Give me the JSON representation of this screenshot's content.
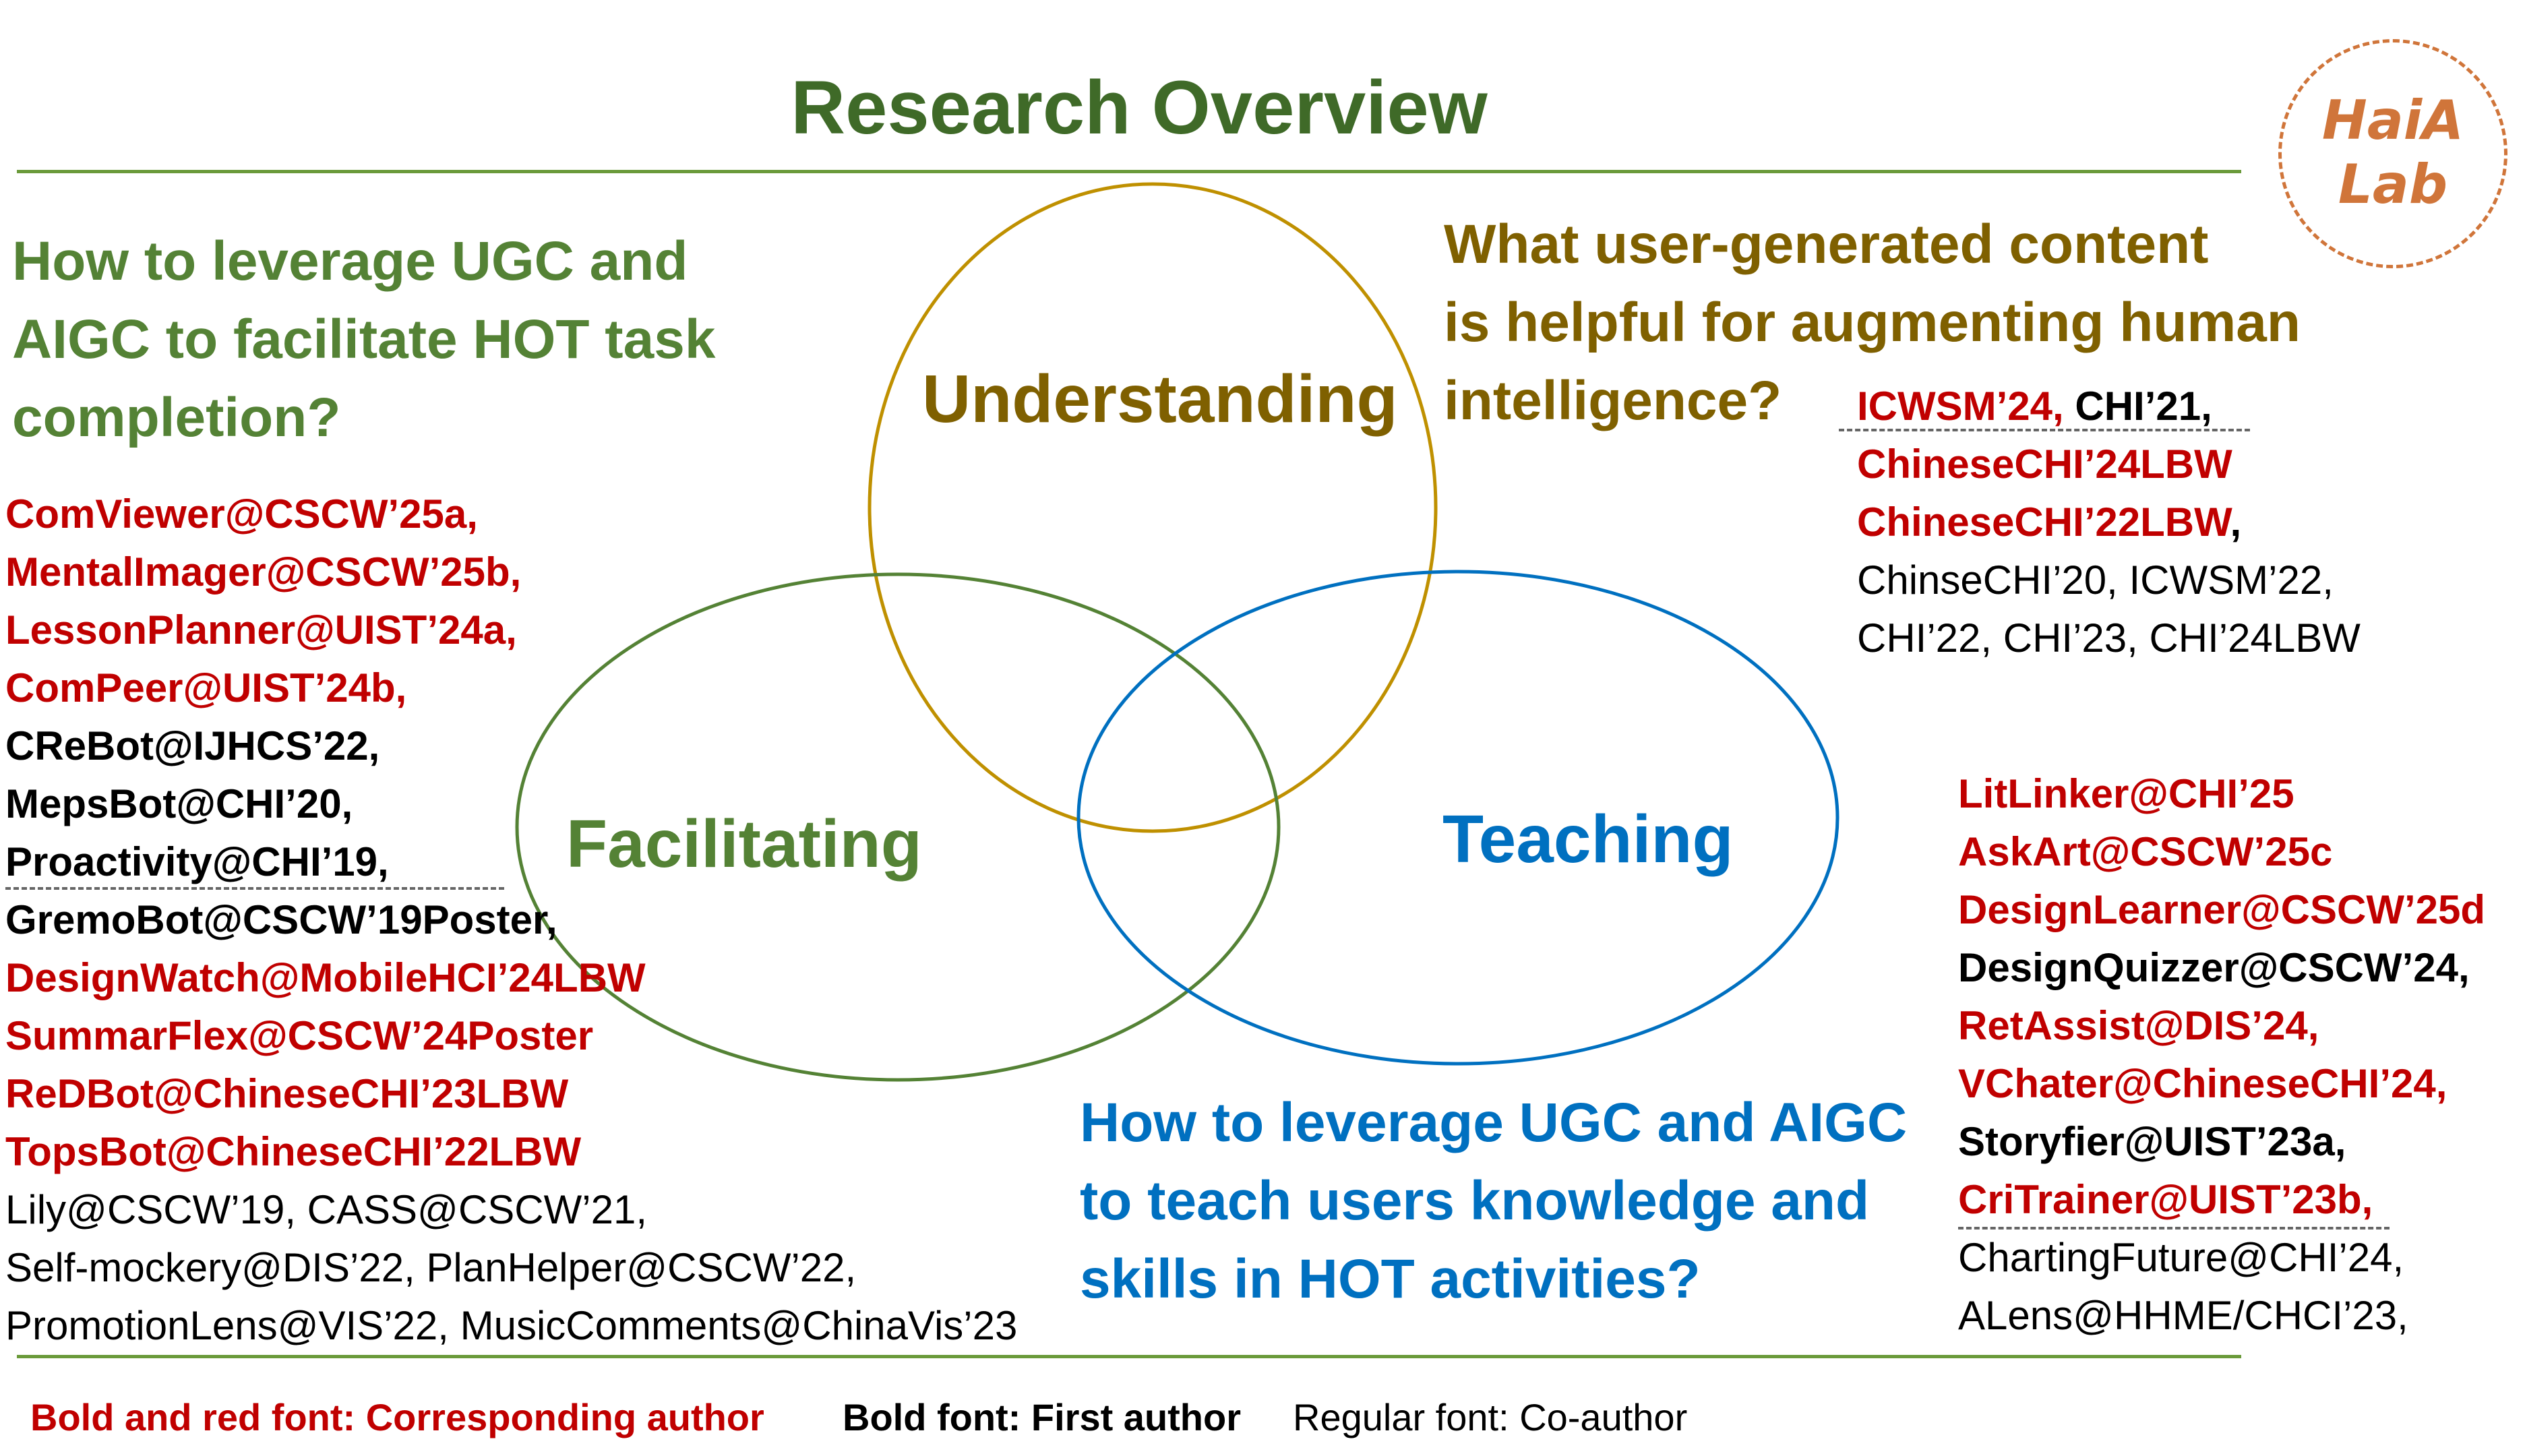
{
  "title": "Research Overview",
  "logo": {
    "line1": "HaiA",
    "line2": "Lab"
  },
  "circles": {
    "understanding": {
      "label": "Understanding",
      "color": "#bf9000"
    },
    "facilitating": {
      "label": "Facilitating",
      "color": "#548235"
    },
    "teaching": {
      "label": "Teaching",
      "color": "#0070c0"
    }
  },
  "questions": {
    "facilitating": [
      "How to leverage UGC and",
      "AIGC to facilitate HOT task",
      "completion?"
    ],
    "understanding": [
      "What user-generated content",
      "is helpful for augmenting human",
      "intelligence?"
    ],
    "teaching": [
      "How to leverage UGC and AIGC",
      "to teach users knowledge and",
      "skills in HOT activities?"
    ]
  },
  "facilitating_refs": [
    {
      "text": "ComViewer@CSCW’25a,",
      "style": "red"
    },
    {
      "text": "MentalImager@CSCW’25b,",
      "style": "red"
    },
    {
      "text": "LessonPlanner@UIST’24a,",
      "style": "red"
    },
    {
      "text": "ComPeer@UIST’24b,",
      "style": "red"
    },
    {
      "text": "CReBot@IJHCS’22,",
      "style": "bold"
    },
    {
      "text": "MepsBot@CHI’20,",
      "style": "bold"
    },
    {
      "text": "Proactivity@CHI’19,",
      "style": "bold"
    },
    {
      "text": "GremoBot@CSCW’19Poster,",
      "style": "bold"
    },
    {
      "text": "DesignWatch@MobileHCI’24LBW",
      "style": "red"
    },
    {
      "text": "SummarFlex@CSCW’24Poster",
      "style": "red"
    },
    {
      "text": "ReDBot@ChineseCHI’23LBW",
      "style": "red"
    },
    {
      "text": "TopsBot@ChineseCHI’22LBW",
      "style": "red"
    },
    {
      "text": "Lily@CSCW’19, CASS@CSCW’21,",
      "style": "reg"
    },
    {
      "text": "Self-mockery@DIS’22, PlanHelper@CSCW’22,",
      "style": "reg"
    },
    {
      "text": "PromotionLens@VIS’22, MusicComments@ChinaVis’23",
      "style": "reg"
    }
  ],
  "understanding_refs": {
    "line1_red": "ICWSM’24,",
    "line1_bold": " CHI’21,",
    "line2": "ChineseCHI’24LBW",
    "line3_red": "ChineseCHI’22LBW",
    "line3_bold": ",",
    "line4": "ChinseCHI’20, ICWSM’22,",
    "line5": "CHI’22, CHI’23, CHI’24LBW"
  },
  "teaching_refs": [
    {
      "text": "LitLinker@CHI’25",
      "style": "red"
    },
    {
      "text": "AskArt@CSCW’25c",
      "style": "red"
    },
    {
      "text": "DesignLearner@CSCW’25d",
      "style": "red"
    },
    {
      "text": "DesignQuizzer@CSCW’24,",
      "style": "bold"
    },
    {
      "text": "RetAssist@DIS’24,",
      "style": "red"
    },
    {
      "text": "VChater@ChineseCHI’24,",
      "style": "red"
    },
    {
      "text": "Storyfier@UIST’23a,",
      "style": "bold"
    },
    {
      "text": "CriTrainer@UIST’23b,",
      "style": "red"
    },
    {
      "text": "ChartingFuture@CHI’24,",
      "style": "reg"
    },
    {
      "text": "ALens@HHME/CHCI’23,",
      "style": "reg"
    }
  ],
  "legend": {
    "red": "Bold and red font: Corresponding author",
    "bold": "Bold font: First author",
    "regular": "Regular font: Co-author"
  }
}
